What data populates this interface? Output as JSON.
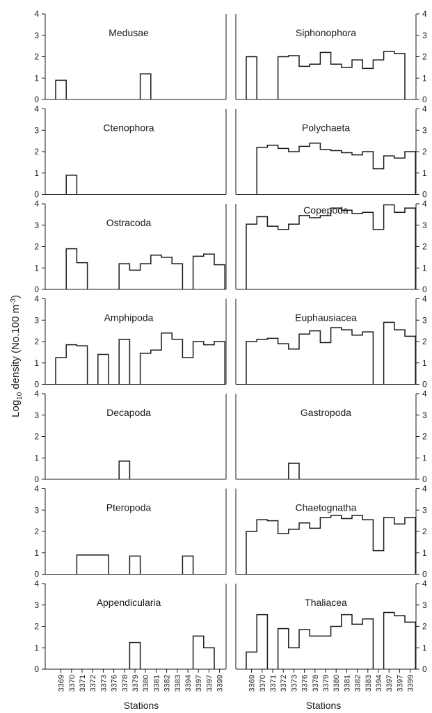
{
  "figure": {
    "ylabel_prefix": "Log",
    "ylabel_sub": "10",
    "ylabel_main": " density (No.100 m",
    "ylabel_sup": "-3",
    "ylabel_end": ")",
    "xlabel_left": "Stations",
    "xlabel_right": "Stations",
    "stations": [
      "3369",
      "3370",
      "3371",
      "3372",
      "3373",
      "3376",
      "3378",
      "3379",
      "3380",
      "3381",
      "3382",
      "3383",
      "3394",
      "3397",
      "3397",
      "3399"
    ],
    "yticks": [
      "0",
      "1",
      "2",
      "3",
      "4"
    ]
  },
  "chart_data": [
    {
      "type": "bar",
      "title": "Medusae",
      "ylim": [
        0,
        4
      ],
      "values": [
        0.9,
        null,
        null,
        null,
        null,
        null,
        null,
        null,
        1.2,
        null,
        null,
        null,
        null,
        null,
        null,
        null
      ]
    },
    {
      "type": "bar",
      "title": "Siphonophora",
      "ylim": [
        0,
        4
      ],
      "values": [
        2.0,
        null,
        null,
        2.0,
        2.05,
        1.55,
        1.65,
        2.2,
        1.65,
        1.5,
        1.85,
        1.45,
        1.85,
        2.25,
        2.15,
        null
      ]
    },
    {
      "type": "bar",
      "title": "Ctenophora",
      "ylim": [
        0,
        4
      ],
      "values": [
        null,
        0.9,
        null,
        null,
        null,
        null,
        null,
        null,
        null,
        null,
        null,
        null,
        null,
        null,
        null,
        null
      ]
    },
    {
      "type": "bar",
      "title": "Polychaeta",
      "ylim": [
        0,
        4
      ],
      "values": [
        null,
        2.2,
        2.3,
        2.15,
        2.0,
        2.25,
        2.4,
        2.1,
        2.05,
        1.95,
        1.85,
        2.0,
        1.2,
        1.8,
        1.7,
        2.0
      ]
    },
    {
      "type": "bar",
      "title": "Ostracoda",
      "ylim": [
        0,
        4
      ],
      "values": [
        null,
        1.9,
        1.25,
        null,
        null,
        null,
        1.2,
        0.9,
        1.2,
        1.6,
        1.5,
        1.2,
        null,
        1.55,
        1.65,
        1.15
      ]
    },
    {
      "type": "bar",
      "title": "Copepoda",
      "ylim": [
        0,
        4
      ],
      "values": [
        3.05,
        3.4,
        2.95,
        2.8,
        3.05,
        3.45,
        3.35,
        3.45,
        3.8,
        3.7,
        3.55,
        3.6,
        2.8,
        3.95,
        3.6,
        3.8
      ]
    },
    {
      "type": "bar",
      "title": "Amphipoda",
      "ylim": [
        0,
        4
      ],
      "values": [
        1.25,
        1.85,
        1.8,
        null,
        1.4,
        null,
        2.1,
        null,
        1.45,
        1.6,
        2.4,
        2.1,
        1.25,
        2.0,
        1.85,
        2.0
      ]
    },
    {
      "type": "bar",
      "title": "Euphausiacea",
      "ylim": [
        0,
        4
      ],
      "values": [
        2.0,
        2.1,
        2.15,
        1.9,
        1.65,
        2.35,
        2.5,
        1.95,
        2.65,
        2.55,
        2.3,
        2.45,
        null,
        2.9,
        2.55,
        2.25
      ]
    },
    {
      "type": "bar",
      "title": "Decapoda",
      "ylim": [
        0,
        4
      ],
      "values": [
        null,
        null,
        null,
        null,
        null,
        null,
        0.85,
        null,
        null,
        null,
        null,
        null,
        null,
        null,
        null,
        null
      ]
    },
    {
      "type": "bar",
      "title": "Gastropoda",
      "ylim": [
        0,
        4
      ],
      "values": [
        null,
        null,
        null,
        null,
        0.75,
        null,
        null,
        null,
        null,
        null,
        null,
        null,
        null,
        null,
        null,
        null
      ]
    },
    {
      "type": "bar",
      "title": "Pteropoda",
      "ylim": [
        0,
        4
      ],
      "values": [
        null,
        null,
        0.9,
        0.9,
        0.9,
        null,
        null,
        0.85,
        null,
        null,
        null,
        null,
        0.85,
        null,
        null,
        null
      ]
    },
    {
      "type": "bar",
      "title": "Chaetognatha",
      "ylim": [
        0,
        4
      ],
      "values": [
        2.0,
        2.55,
        2.5,
        1.9,
        2.1,
        2.4,
        2.15,
        2.65,
        2.75,
        2.6,
        2.75,
        2.55,
        1.1,
        2.65,
        2.35,
        2.65
      ]
    },
    {
      "type": "bar",
      "title": "Appendicularia",
      "ylim": [
        0,
        4
      ],
      "values": [
        null,
        null,
        null,
        null,
        null,
        null,
        null,
        1.25,
        null,
        null,
        null,
        null,
        null,
        1.55,
        1.0,
        null
      ]
    },
    {
      "type": "bar",
      "title": "Thaliacea",
      "ylim": [
        0,
        4
      ],
      "values": [
        0.8,
        2.55,
        null,
        1.9,
        1.0,
        1.85,
        1.55,
        1.55,
        2.0,
        2.55,
        2.1,
        2.35,
        null,
        2.65,
        2.5,
        2.2
      ]
    }
  ]
}
